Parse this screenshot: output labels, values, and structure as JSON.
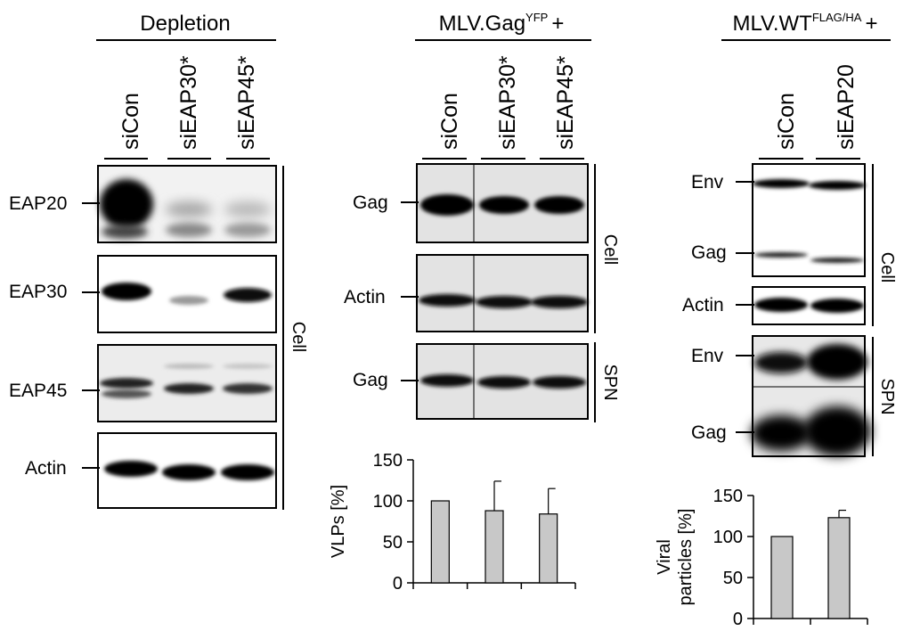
{
  "panels": {
    "depletion": {
      "header": "Depletion",
      "lanes": [
        "siCon",
        "siEAP30*",
        "siEAP45*"
      ],
      "rows": [
        "EAP20",
        "EAP30",
        "EAP45",
        "Actin"
      ],
      "side_label": "Cell"
    },
    "gag_yfp": {
      "header_main": "MLV.Gag",
      "header_sup": "YFP",
      "header_tail": "+",
      "lanes": [
        "siCon",
        "siEAP30*",
        "siEAP45*"
      ],
      "rows": [
        "Gag",
        "Actin",
        "Gag"
      ],
      "side_labels": [
        "Cell",
        "SPN"
      ]
    },
    "wt_flag": {
      "header_main": "MLV.WT",
      "header_sup": "FLAG/HA",
      "header_tail": "+",
      "lanes": [
        "siCon",
        "siEAP20"
      ],
      "rows": [
        "Env",
        "Gag",
        "Actin",
        "Env",
        "Gag"
      ],
      "side_labels": [
        "Cell",
        "SPN"
      ]
    }
  },
  "chart_data": [
    {
      "type": "bar",
      "categories": [
        "siCon",
        "siEAP30*",
        "siEAP45*"
      ],
      "values": [
        100,
        88,
        84
      ],
      "error_upper": [
        0,
        36,
        31
      ],
      "ylabel": "VLPs [%]",
      "ylim": [
        0,
        150
      ],
      "yticks": [
        0,
        50,
        100,
        150
      ],
      "bar_color": "#c8c8c8"
    },
    {
      "type": "bar",
      "categories": [
        "siCon",
        "siEAP20"
      ],
      "values": [
        100,
        123
      ],
      "error_upper": [
        0,
        9
      ],
      "ylabel_lines": [
        "Viral",
        "particles [%]"
      ],
      "ylim": [
        0,
        150
      ],
      "yticks": [
        0,
        50,
        100,
        150
      ],
      "bar_color": "#c8c8c8"
    }
  ]
}
